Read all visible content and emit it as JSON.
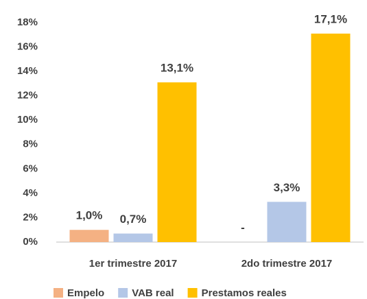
{
  "chart_data": {
    "type": "bar",
    "categories": [
      "1er trimestre 2017",
      "2do trimestre 2017"
    ],
    "series": [
      {
        "name": "Empelo",
        "color": "#f4b183",
        "values": [
          1.0,
          null
        ],
        "value_labels": [
          "1,0%",
          "-"
        ]
      },
      {
        "name": "VAB real",
        "color": "#b4c7e7",
        "values": [
          0.7,
          3.3
        ],
        "value_labels": [
          "0,7%",
          "3,3%"
        ]
      },
      {
        "name": "Prestamos reales",
        "color": "#ffc000",
        "values": [
          13.1,
          17.1
        ],
        "value_labels": [
          "13,1%",
          "17,1%"
        ]
      }
    ],
    "ylim": [
      0,
      18
    ],
    "yticks": [
      {
        "value": 0,
        "label": "0%"
      },
      {
        "value": 2,
        "label": "2%"
      },
      {
        "value": 4,
        "label": "4%"
      },
      {
        "value": 6,
        "label": "6%"
      },
      {
        "value": 8,
        "label": "8%"
      },
      {
        "value": 10,
        "label": "10%"
      },
      {
        "value": 12,
        "label": "12%"
      },
      {
        "value": 14,
        "label": "14%"
      },
      {
        "value": 16,
        "label": "16%"
      },
      {
        "value": 18,
        "label": "18%"
      }
    ],
    "grid": false,
    "legend": "bottom"
  }
}
